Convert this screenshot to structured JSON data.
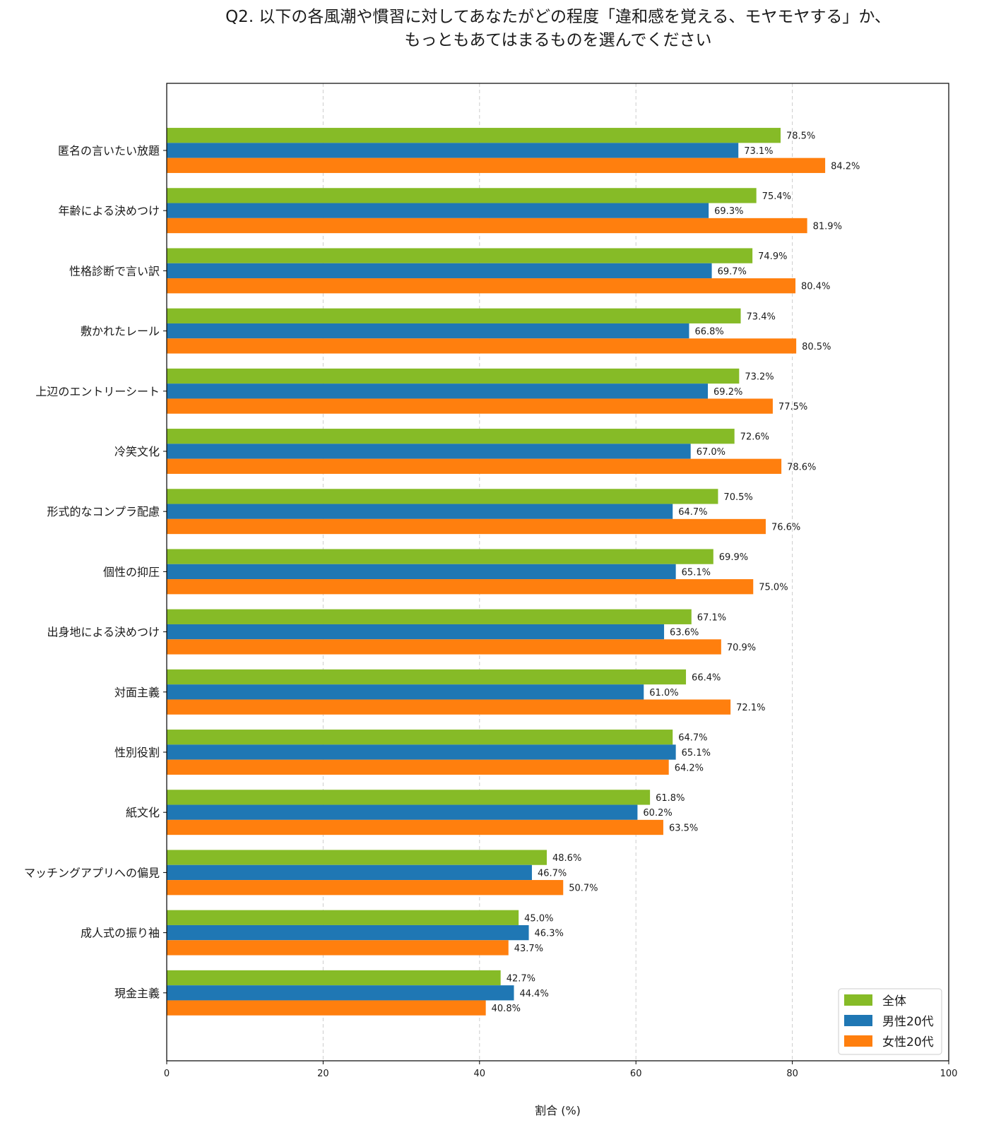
{
  "chart_data": {
    "type": "bar",
    "orientation": "horizontal",
    "title_lines": [
      "Q2. 以下の各風潮や慣習に対してあなたがどの程度「違和感を覚える、モヤモヤする」か、",
      "もっともあてはまるものを選んでください"
    ],
    "xlabel": "割合 (%)",
    "ylabel": "",
    "xlim": [
      0,
      100
    ],
    "xticks": [
      0,
      20,
      40,
      60,
      80,
      100
    ],
    "grid": "vertical dashed",
    "legend_position": "bottom-right",
    "categories": [
      "匿名の言いたい放題",
      "年齢による決めつけ",
      "性格診断で言い訳",
      "敷かれたレール",
      "上辺のエントリーシート",
      "冷笑文化",
      "形式的なコンプラ配慮",
      "個性の抑圧",
      "出身地による決めつけ",
      "対面主義",
      "性別役割",
      "紙文化",
      "マッチングアプリへの偏見",
      "成人式の振り袖",
      "現金主義"
    ],
    "series": [
      {
        "name": "全体",
        "color": "#86bb27",
        "values": [
          78.5,
          75.4,
          74.9,
          73.4,
          73.2,
          72.6,
          70.5,
          69.9,
          67.1,
          66.4,
          64.7,
          61.8,
          48.6,
          45.0,
          42.7
        ]
      },
      {
        "name": "男性20代",
        "color": "#1f77b4",
        "values": [
          73.1,
          69.3,
          69.7,
          66.8,
          69.2,
          67.0,
          64.7,
          65.1,
          63.6,
          61.0,
          65.1,
          60.2,
          46.7,
          46.3,
          44.4
        ]
      },
      {
        "name": "女性20代",
        "color": "#ff7f0e",
        "values": [
          84.2,
          81.9,
          80.4,
          80.5,
          77.5,
          78.6,
          76.6,
          75.0,
          70.9,
          72.1,
          64.2,
          63.5,
          50.7,
          43.7,
          40.8
        ]
      }
    ],
    "value_suffix": "%"
  }
}
